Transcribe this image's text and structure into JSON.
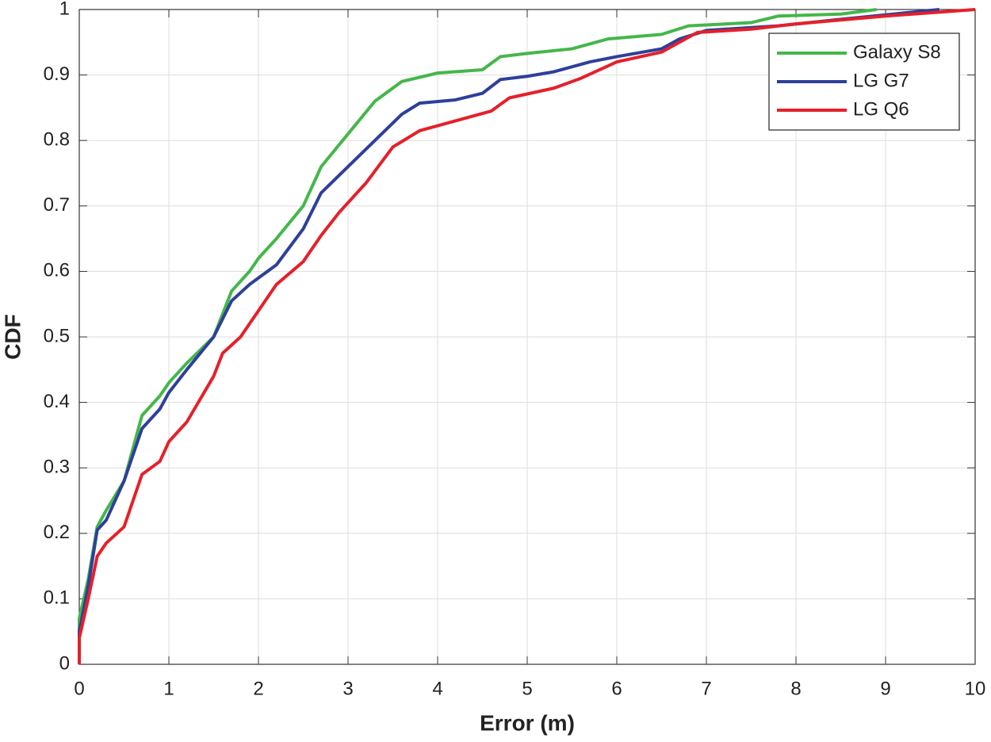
{
  "chart_data": {
    "type": "line",
    "xlabel": "Error (m)",
    "ylabel": "CDF",
    "xlim": [
      0,
      10
    ],
    "xticks": [
      0,
      1,
      2,
      3,
      4,
      5,
      6,
      7,
      8,
      9,
      10
    ],
    "ylim": [
      0,
      1
    ],
    "yticks": [
      0,
      0.1,
      0.2,
      0.3,
      0.4,
      0.5,
      0.6,
      0.7,
      0.8,
      0.9,
      1
    ],
    "grid": true,
    "legend_loc": "upper right",
    "series": [
      {
        "name": "Galaxy S8",
        "color": "#44b74a",
        "x": [
          0,
          0,
          0.05,
          0.1,
          0.2,
          0.3,
          0.5,
          0.6,
          0.7,
          0.9,
          1.0,
          1.2,
          1.5,
          1.7,
          1.9,
          2.0,
          2.2,
          2.5,
          2.7,
          3.0,
          3.3,
          3.6,
          4.0,
          4.5,
          4.7,
          5.0,
          5.5,
          5.9,
          6.5,
          6.8,
          7.5,
          7.8,
          8.5,
          8.9
        ],
        "values": [
          0,
          0.07,
          0.1,
          0.13,
          0.21,
          0.235,
          0.28,
          0.33,
          0.38,
          0.41,
          0.43,
          0.46,
          0.5,
          0.57,
          0.6,
          0.62,
          0.65,
          0.7,
          0.76,
          0.81,
          0.86,
          0.89,
          0.903,
          0.908,
          0.928,
          0.933,
          0.94,
          0.955,
          0.962,
          0.975,
          0.98,
          0.99,
          0.993,
          1
        ]
      },
      {
        "name": "LG G7",
        "color": "#2e3f9b",
        "x": [
          0,
          0,
          0.1,
          0.2,
          0.3,
          0.5,
          0.7,
          0.9,
          1.0,
          1.2,
          1.5,
          1.7,
          1.9,
          2.2,
          2.5,
          2.7,
          3.0,
          3.3,
          3.6,
          3.8,
          4.2,
          4.5,
          4.7,
          5.0,
          5.3,
          5.7,
          6.0,
          6.5,
          6.7,
          7.0,
          7.8,
          8.5,
          9.6
        ],
        "values": [
          0,
          0.05,
          0.12,
          0.205,
          0.22,
          0.28,
          0.36,
          0.39,
          0.415,
          0.45,
          0.5,
          0.555,
          0.58,
          0.61,
          0.665,
          0.72,
          0.76,
          0.8,
          0.84,
          0.857,
          0.862,
          0.872,
          0.893,
          0.898,
          0.905,
          0.92,
          0.928,
          0.94,
          0.955,
          0.968,
          0.975,
          0.985,
          1
        ]
      },
      {
        "name": "LG Q6",
        "color": "#e5202a",
        "x": [
          0,
          0,
          0.1,
          0.2,
          0.3,
          0.5,
          0.7,
          0.9,
          1.0,
          1.2,
          1.5,
          1.6,
          1.8,
          2.0,
          2.2,
          2.5,
          2.7,
          2.9,
          3.2,
          3.5,
          3.8,
          4.2,
          4.6,
          4.8,
          5.3,
          5.6,
          6.0,
          6.5,
          6.7,
          6.9,
          7.5,
          8.0,
          9.0,
          10
        ],
        "values": [
          0,
          0.04,
          0.1,
          0.165,
          0.185,
          0.21,
          0.29,
          0.31,
          0.34,
          0.37,
          0.44,
          0.475,
          0.5,
          0.54,
          0.58,
          0.615,
          0.655,
          0.69,
          0.735,
          0.79,
          0.815,
          0.83,
          0.845,
          0.865,
          0.88,
          0.895,
          0.92,
          0.935,
          0.95,
          0.965,
          0.97,
          0.978,
          0.99,
          1
        ]
      }
    ]
  }
}
